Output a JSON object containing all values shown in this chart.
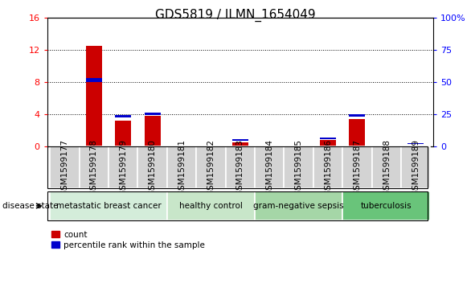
{
  "title": "GDS5819 / ILMN_1654049",
  "samples": [
    "GSM1599177",
    "GSM1599178",
    "GSM1599179",
    "GSM1599180",
    "GSM1599181",
    "GSM1599182",
    "GSM1599183",
    "GSM1599184",
    "GSM1599185",
    "GSM1599186",
    "GSM1599187",
    "GSM1599188",
    "GSM1599189"
  ],
  "red_values": [
    0,
    12.5,
    3.2,
    3.8,
    0,
    0,
    0.5,
    0,
    0,
    0.8,
    3.4,
    0,
    0
  ],
  "blue_values_left_scale": [
    0,
    8.0,
    3.6,
    3.9,
    0,
    0,
    0.7,
    0,
    0,
    0.9,
    3.7,
    0,
    0.3
  ],
  "blue_bar_height": [
    0,
    0.5,
    0.3,
    0.3,
    0,
    0,
    0.15,
    0,
    0,
    0.15,
    0.3,
    0,
    0.1
  ],
  "ylim_left": [
    0,
    16
  ],
  "ylim_right": [
    0,
    100
  ],
  "yticks_left": [
    0,
    4,
    8,
    12,
    16
  ],
  "yticks_right": [
    0,
    25,
    50,
    75,
    100
  ],
  "ytick_labels_right": [
    "0",
    "25",
    "50",
    "75",
    "100%"
  ],
  "groups": [
    {
      "label": "metastatic breast cancer",
      "start": 0,
      "end": 4,
      "color": "#d4edda"
    },
    {
      "label": "healthy control",
      "start": 4,
      "end": 7,
      "color": "#c8e6c9"
    },
    {
      "label": "gram-negative sepsis",
      "start": 7,
      "end": 10,
      "color": "#a5d6a7"
    },
    {
      "label": "tuberculosis",
      "start": 10,
      "end": 13,
      "color": "#69c47a"
    }
  ],
  "bar_width": 0.55,
  "red_color": "#cc0000",
  "blue_color": "#0000cc",
  "sample_bg_color": "#d3d3d3",
  "grid_color": "#000000",
  "title_fontsize": 11,
  "tick_fontsize": 7.5,
  "group_label_fontsize": 7.5,
  "legend_label_count": "count",
  "legend_label_percentile": "percentile rank within the sample"
}
